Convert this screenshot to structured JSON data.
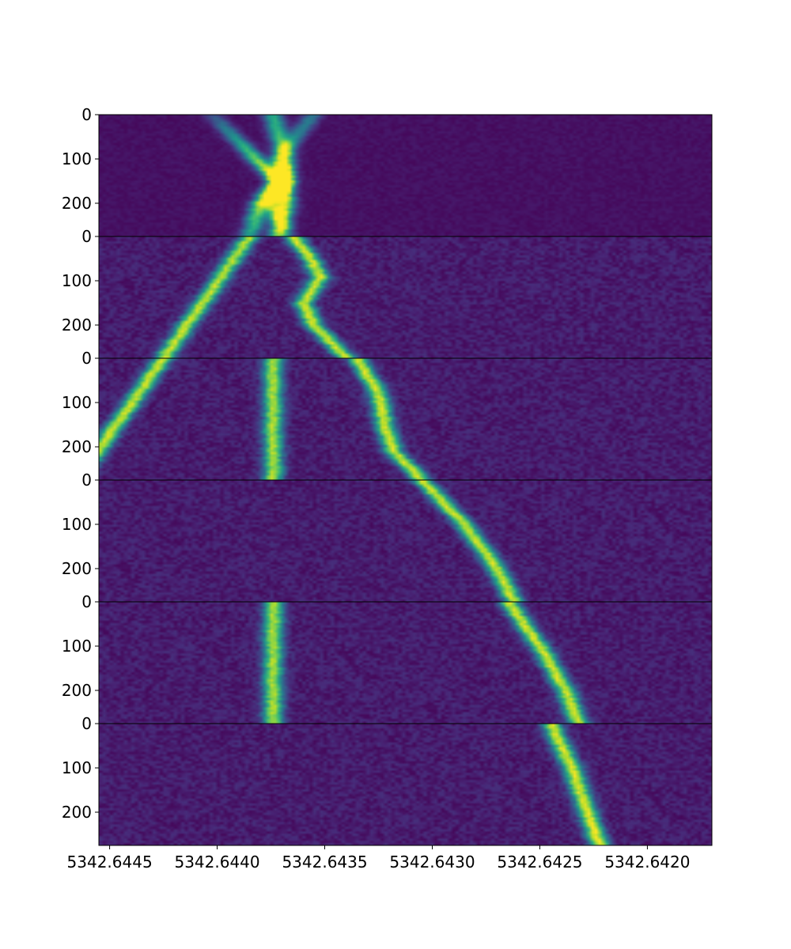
{
  "chart_data": {
    "type": "heatmap",
    "title": "",
    "xlabel": "",
    "ylabel": "",
    "colormap": "viridis",
    "background_color": "#440154",
    "xlim": [
      5342.64455,
      5342.6417
    ],
    "x_ticks": [
      {
        "value": 5342.6445,
        "label": "5342.6445"
      },
      {
        "value": 5342.644,
        "label": "5342.6440"
      },
      {
        "value": 5342.6435,
        "label": "5342.6435"
      },
      {
        "value": 5342.643,
        "label": "5342.6430"
      },
      {
        "value": 5342.6425,
        "label": "5342.6425"
      },
      {
        "value": 5342.642,
        "label": "5342.6420"
      }
    ],
    "panel_ylim": [
      0,
      275
    ],
    "y_ticks": [
      {
        "value": 0,
        "label": "0"
      },
      {
        "value": 100,
        "label": "100"
      },
      {
        "value": 200,
        "label": "200"
      }
    ],
    "line_width": 4.5e-05,
    "panels": [
      {
        "noise": 0.05,
        "tracks": [
          {
            "points": [
              [
                0,
                5342.64402
              ],
              [
                100,
                5342.64382
              ],
              [
                150,
                5342.64372
              ],
              [
                200,
                5342.6438
              ],
              [
                275,
                5342.64385
              ]
            ],
            "intensity": [
              [
                0,
                0.2
              ],
              [
                150,
                1.0
              ],
              [
                275,
                0.5
              ]
            ]
          },
          {
            "points": [
              [
                0,
                5342.64374
              ],
              [
                100,
                5342.64368
              ],
              [
                150,
                5342.6437
              ],
              [
                200,
                5342.64368
              ],
              [
                275,
                5342.64372
              ]
            ],
            "intensity": [
              [
                0,
                0.55
              ],
              [
                120,
                0.75
              ],
              [
                150,
                1.0
              ],
              [
                275,
                0.6
              ]
            ]
          },
          {
            "points": [
              [
                0,
                5342.64355
              ],
              [
                100,
                5342.64372
              ],
              [
                150,
                5342.64368
              ],
              [
                200,
                5342.64375
              ],
              [
                275,
                5342.64368
              ]
            ],
            "intensity": [
              [
                0,
                0.35
              ],
              [
                100,
                0.45
              ],
              [
                150,
                0.95
              ],
              [
                275,
                0.3
              ]
            ]
          }
        ]
      },
      {
        "noise": 0.12,
        "tracks": [
          {
            "points": [
              [
                0,
                5342.64385
              ],
              [
                275,
                5342.64425
              ]
            ],
            "intensity": [
              [
                0,
                0.8
              ],
              [
                275,
                0.85
              ]
            ]
          },
          {
            "points": [
              [
                0,
                5342.64365
              ],
              [
                40,
                5342.64358
              ],
              [
                90,
                5342.64352
              ],
              [
                150,
                5342.6436
              ],
              [
                200,
                5342.64355
              ],
              [
                275,
                5342.6434
              ]
            ],
            "intensity": [
              [
                0,
                0.85
              ],
              [
                275,
                0.85
              ]
            ]
          }
        ]
      },
      {
        "noise": 0.12,
        "tracks": [
          {
            "points": [
              [
                0,
                5342.64425
              ],
              [
                275,
                5342.64465
              ]
            ],
            "intensity": [
              [
                0,
                0.85
              ],
              [
                275,
                0.85
              ]
            ]
          },
          {
            "points": [
              [
                0,
                5342.64374
              ],
              [
                275,
                5342.64374
              ]
            ],
            "intensity": [
              [
                0,
                0.8
              ],
              [
                275,
                0.8
              ]
            ]
          },
          {
            "points": [
              [
                0,
                5342.64335
              ],
              [
                80,
                5342.64325
              ],
              [
                150,
                5342.64322
              ],
              [
                210,
                5342.64318
              ],
              [
                275,
                5342.64305
              ]
            ],
            "intensity": [
              [
                0,
                0.85
              ],
              [
                275,
                0.85
              ]
            ]
          }
        ]
      },
      {
        "noise": 0.12,
        "tracks": [
          {
            "points": [
              [
                0,
                5342.64465
              ],
              [
                275,
                5342.64505
              ]
            ],
            "intensity": [
              [
                0,
                0.85
              ],
              [
                275,
                0.85
              ]
            ]
          },
          {
            "points": [
              [
                0,
                5342.64305
              ],
              [
                100,
                5342.64285
              ],
              [
                200,
                5342.6427
              ],
              [
                275,
                5342.64262
              ]
            ],
            "intensity": [
              [
                0,
                0.85
              ],
              [
                275,
                0.85
              ]
            ]
          }
        ]
      },
      {
        "noise": 0.12,
        "tracks": [
          {
            "points": [
              [
                0,
                5342.64374
              ],
              [
                275,
                5342.64374
              ]
            ],
            "intensity": [
              [
                0,
                0.8
              ],
              [
                275,
                0.8
              ]
            ]
          },
          {
            "points": [
              [
                0,
                5342.64265
              ],
              [
                100,
                5342.6425
              ],
              [
                200,
                5342.64238
              ],
              [
                275,
                5342.64232
              ]
            ],
            "intensity": [
              [
                0,
                0.85
              ],
              [
                275,
                0.85
              ]
            ]
          }
        ]
      },
      {
        "noise": 0.12,
        "tracks": [
          {
            "points": [
              [
                0,
                5342.64245
              ],
              [
                100,
                5342.64235
              ],
              [
                200,
                5342.64228
              ],
              [
                275,
                5342.64222
              ]
            ],
            "intensity": [
              [
                0,
                0.85
              ],
              [
                275,
                0.9
              ]
            ]
          }
        ]
      }
    ]
  }
}
